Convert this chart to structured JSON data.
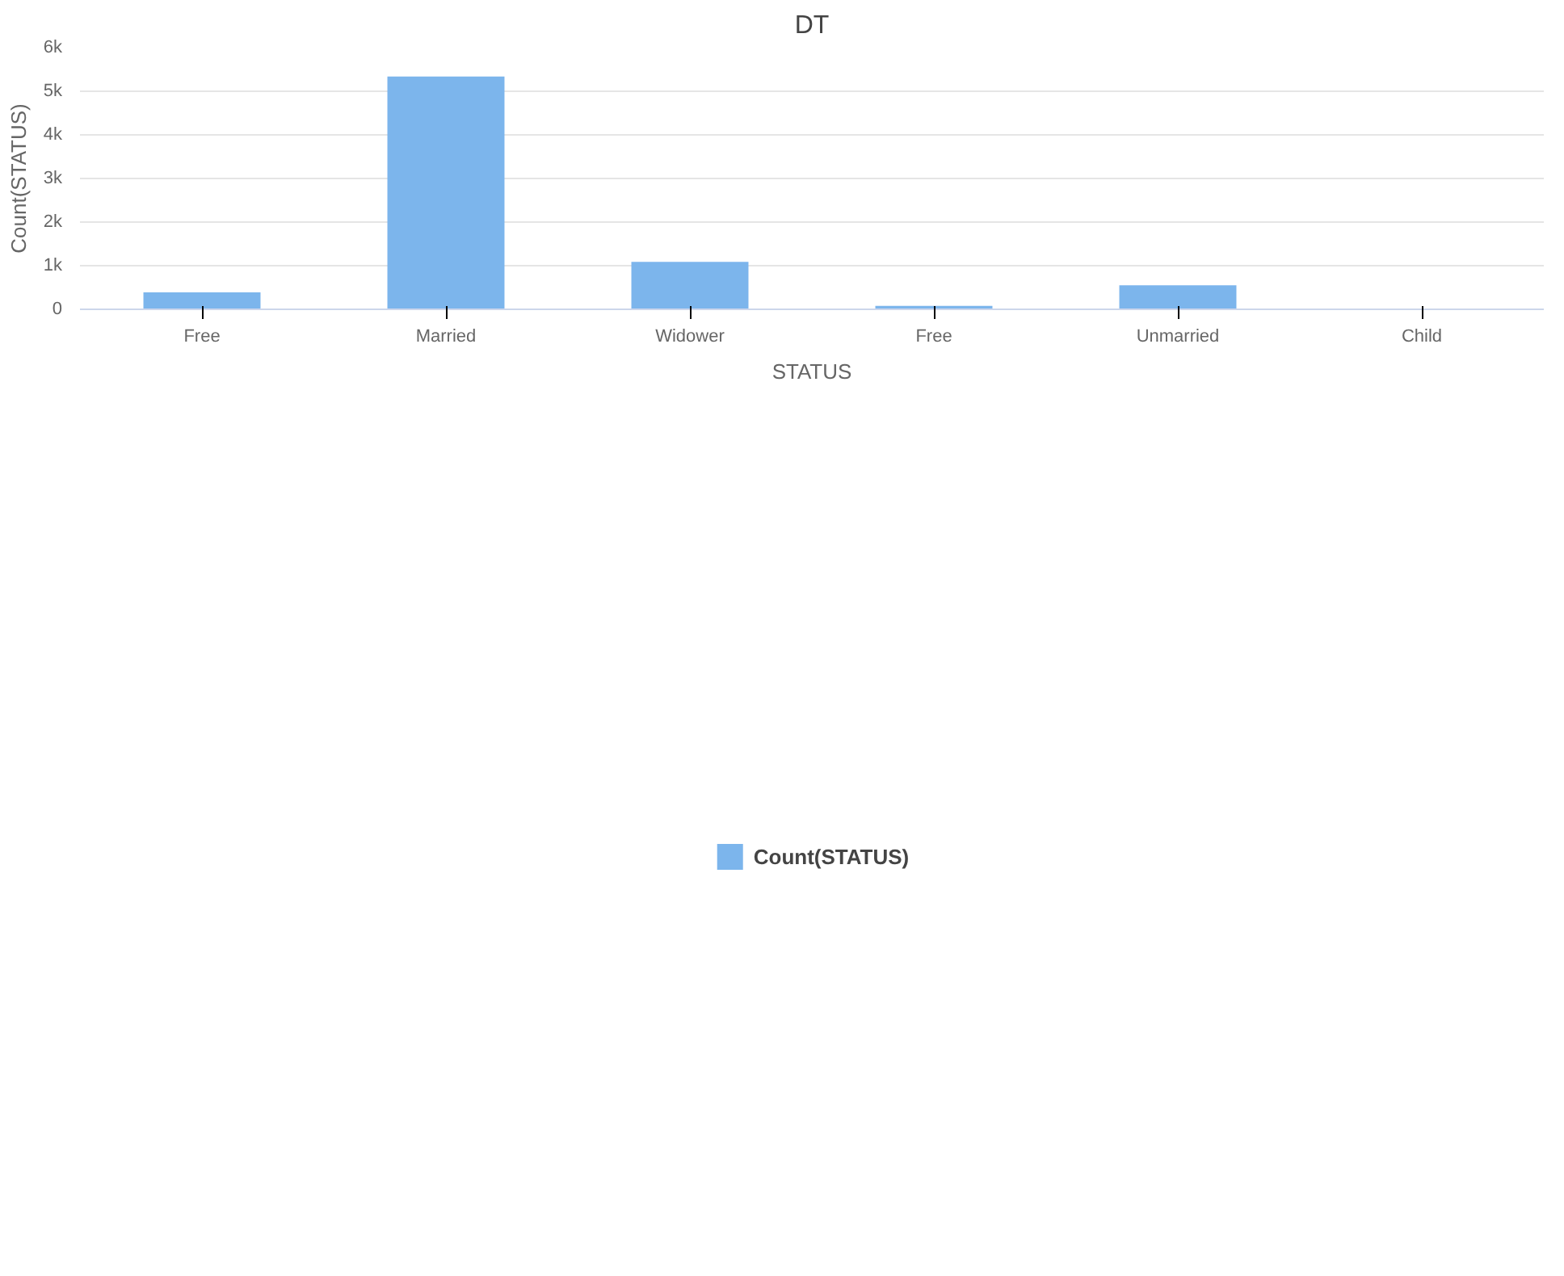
{
  "chart_data": {
    "type": "bar",
    "title": "DT",
    "xlabel": "STATUS",
    "ylabel": "Count(STATUS)",
    "categories": [
      "Free",
      "Married",
      "Widower",
      "Free",
      "Unmarried",
      "Child"
    ],
    "series": [
      {
        "name": "Count(STATUS)",
        "color": "#7cb5ec",
        "values": [
          390,
          5340,
          1090,
          80,
          550,
          null
        ]
      }
    ],
    "ylim": [
      0,
      6000
    ],
    "yticks": [
      0,
      {
        "value": 1000,
        "label": "1k"
      },
      {
        "value": 2000,
        "label": "2k"
      },
      {
        "value": 3000,
        "label": "3k"
      },
      {
        "value": 4000,
        "label": "4k"
      },
      {
        "value": 5000,
        "label": "5k"
      },
      {
        "value": 6000,
        "label": "6k"
      }
    ],
    "grid": "y",
    "legend": "bottom"
  }
}
